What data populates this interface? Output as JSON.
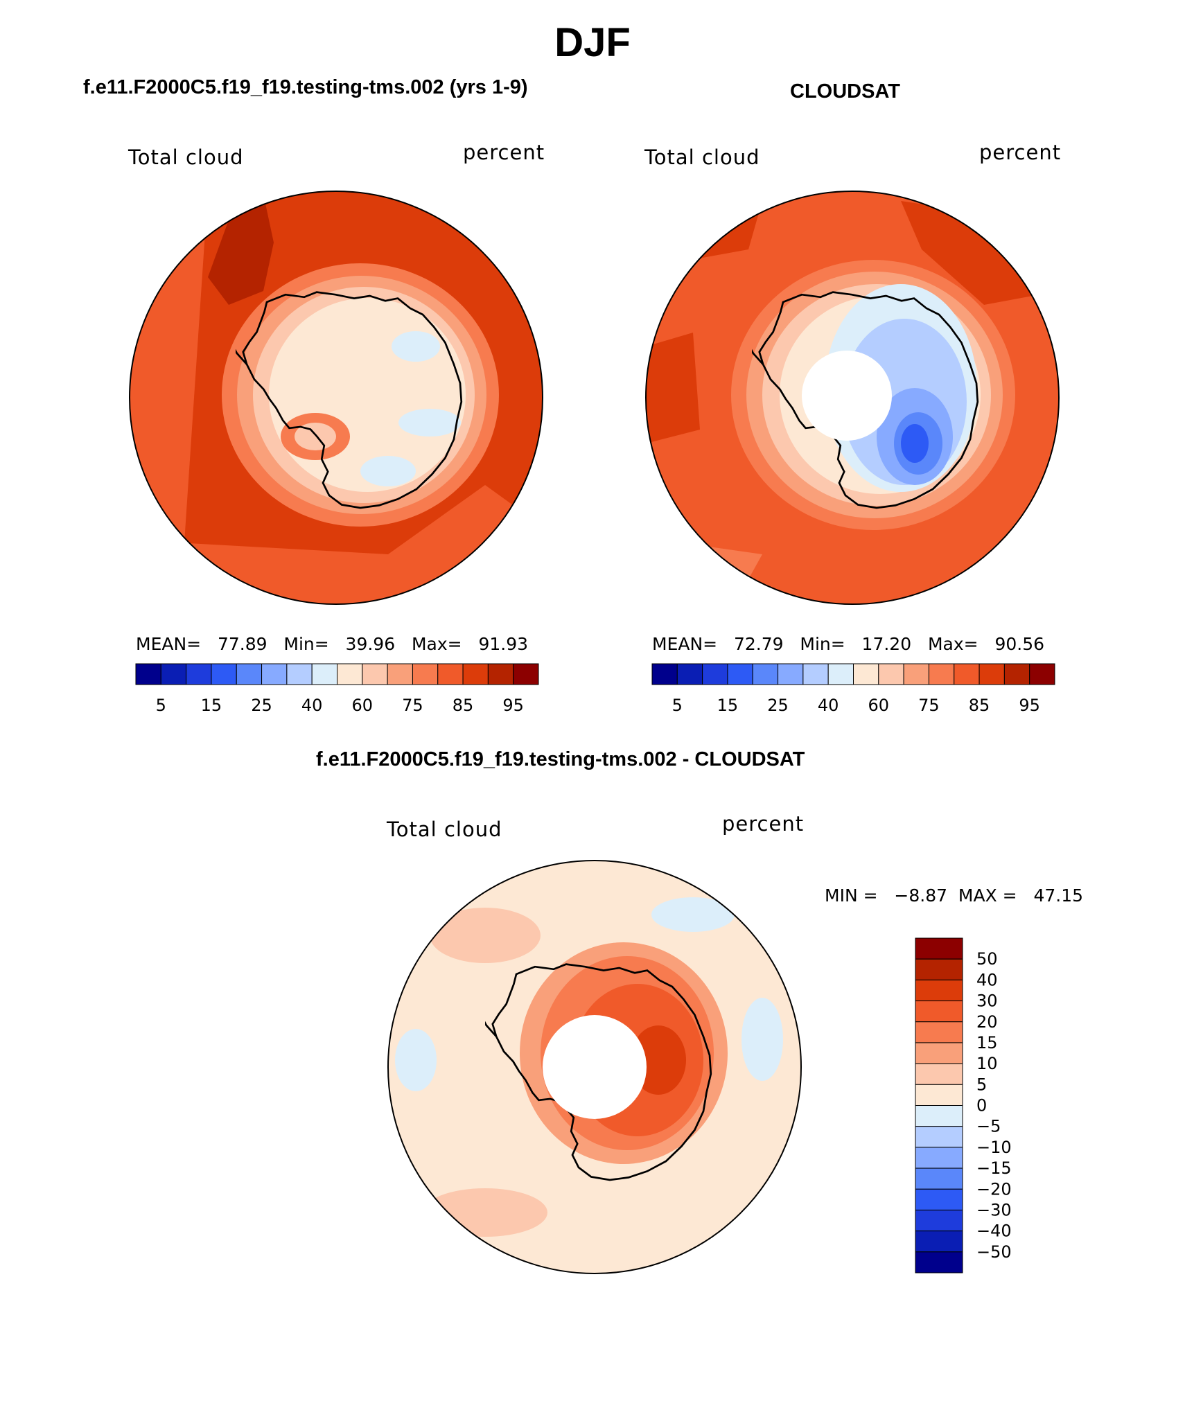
{
  "title": "DJF",
  "colors": {
    "model_scale": [
      "#00008c",
      "#0a1eb4",
      "#1e3cdc",
      "#2d5af5",
      "#5a87fa",
      "#87aaff",
      "#b4cdff",
      "#dceefa",
      "#fde8d4",
      "#fcc8ae",
      "#f9a07a",
      "#f77b4f",
      "#f05a2a",
      "#dc3c0a",
      "#b42300",
      "#8c0000"
    ],
    "diff_scale": [
      "#8c0000",
      "#b42300",
      "#dc3c0a",
      "#f05a2a",
      "#f77b4f",
      "#f9a07a",
      "#fcc8ae",
      "#fde8d4",
      "#dceefa",
      "#b4cdff",
      "#87aaff",
      "#5a87fa",
      "#2d5af5",
      "#1e3cdc",
      "#0a1eb4",
      "#00008c"
    ],
    "ocean_model": "#dc3c0a",
    "ocean_obs": "#f05a2a",
    "diff_background": "#fde8d4"
  },
  "panels": [
    {
      "title": "f.e11.F2000C5.f19_f19.testing-tms.002 (yrs 1-9)",
      "left_label": "Total cloud",
      "right_label": "percent",
      "stats": {
        "mean_label": "MEAN=",
        "mean": "77.89",
        "min_label": "Min=",
        "min": "39.96",
        "max_label": "Max=",
        "max": "91.93"
      },
      "colorbar_ticks": [
        "5",
        "15",
        "25",
        "40",
        "60",
        "75",
        "85",
        "95"
      ]
    },
    {
      "title": "CLOUDSAT",
      "left_label": "Total cloud",
      "right_label": "percent",
      "stats": {
        "mean_label": "MEAN=",
        "mean": "72.79",
        "min_label": "Min=",
        "min": "17.20",
        "max_label": "Max=",
        "max": "90.56"
      },
      "colorbar_ticks": [
        "5",
        "15",
        "25",
        "40",
        "60",
        "75",
        "85",
        "95"
      ]
    },
    {
      "title": "f.e11.F2000C5.f19_f19.testing-tms.002 - CLOUDSAT",
      "left_label": "Total cloud",
      "right_label": "percent",
      "stats": {
        "min_label": "MIN =",
        "min": "−8.87",
        "max_label": "MAX =",
        "max": "47.15"
      },
      "colorbar_ticks": [
        "50",
        "40",
        "30",
        "20",
        "15",
        "10",
        "5",
        "0",
        "−5",
        "−10",
        "−15",
        "−20",
        "−30",
        "−40",
        "−50"
      ]
    }
  ]
}
